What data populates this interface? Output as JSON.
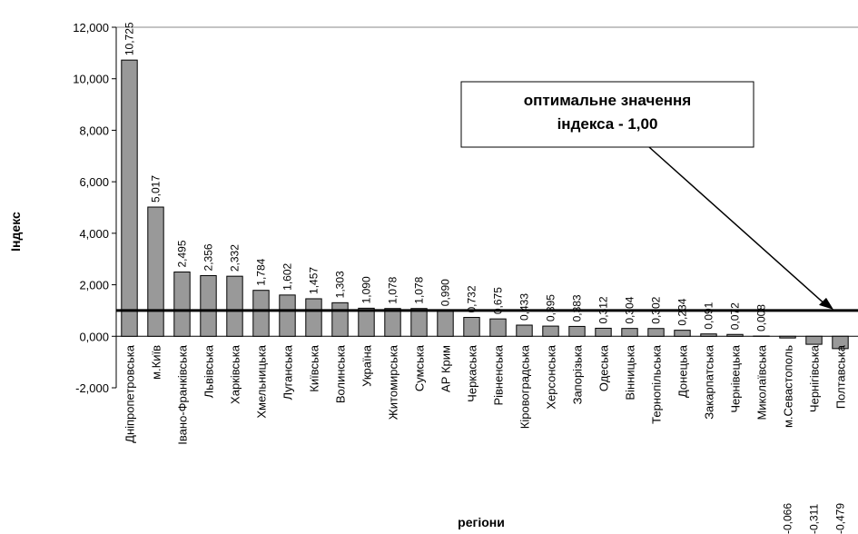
{
  "chart_data": {
    "type": "bar",
    "categories": [
      "Дніпропетровська",
      "м.Київ",
      "Івано-Франківська",
      "Львівська",
      "Харківська",
      "Хмельницька",
      "Луганська",
      "Київська",
      "Волинська",
      "Україна",
      "Житомирська",
      "Сумська",
      "АР Крим",
      "Черкаська",
      "Рівненська",
      "Кіровоградська",
      "Херсонська",
      "Запорізька",
      "Одеська",
      "Вінницька",
      "Тернопільська",
      "Донецька",
      "Закарпатська",
      "Чернівецька",
      "Миколаївська",
      "м.Севастополь",
      "Чернігівська",
      "Полтавська"
    ],
    "values": [
      10.725,
      5.017,
      2.495,
      2.356,
      2.332,
      1.784,
      1.602,
      1.457,
      1.303,
      1.09,
      1.078,
      1.078,
      0.99,
      0.732,
      0.675,
      0.433,
      0.395,
      0.383,
      0.312,
      0.304,
      0.302,
      0.234,
      0.091,
      0.072,
      0.008,
      -0.066,
      -0.311,
      -0.479
    ],
    "value_labels": [
      "10,725",
      "5,017",
      "2,495",
      "2,356",
      "2,332",
      "1,784",
      "1,602",
      "1,457",
      "1,303",
      "1,090",
      "1,078",
      "1,078",
      "0,990",
      "0,732",
      "0,675",
      "0,433",
      "0,395",
      "0,383",
      "0,312",
      "0,304",
      "0,302",
      "0,234",
      "0,091",
      "0,072",
      "0,008",
      "-0,066",
      "-0,311",
      "-0,479"
    ],
    "color": "#999999",
    "ylim": [
      -2,
      12
    ],
    "yticks": [
      {
        "value": -2,
        "label": "-2,000"
      },
      {
        "value": 0,
        "label": "0,000"
      },
      {
        "value": 2,
        "label": "2,000"
      },
      {
        "value": 4,
        "label": "4,000"
      },
      {
        "value": 6,
        "label": "6,000"
      },
      {
        "value": 8,
        "label": "8,000"
      },
      {
        "value": 10,
        "label": "10,000"
      },
      {
        "value": 12,
        "label": "12,000"
      }
    ],
    "y_label": "Індекс",
    "x_label": "регіони",
    "reference_value": 1,
    "annotation": [
      "оптимальне значення",
      "індекса - 1,00"
    ]
  }
}
